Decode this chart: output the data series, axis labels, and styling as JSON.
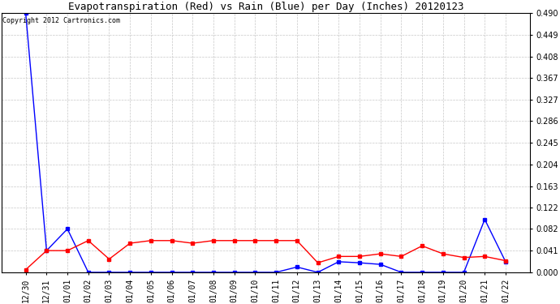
{
  "title": "Evapotranspiration (Red) vs Rain (Blue) per Day (Inches) 20120123",
  "copyright": "Copyright 2012 Cartronics.com",
  "x_labels": [
    "12/30",
    "12/31",
    "01/01",
    "01/02",
    "01/03",
    "01/04",
    "01/05",
    "01/06",
    "01/07",
    "01/08",
    "01/09",
    "01/10",
    "01/11",
    "01/12",
    "01/13",
    "01/14",
    "01/15",
    "01/16",
    "01/17",
    "01/18",
    "01/19",
    "01/20",
    "01/21",
    "01/22"
  ],
  "rain_blue": [
    0.49,
    0.041,
    0.082,
    0.0,
    0.0,
    0.0,
    0.0,
    0.0,
    0.0,
    0.0,
    0.0,
    0.0,
    0.0,
    0.01,
    0.0,
    0.02,
    0.018,
    0.015,
    0.0,
    0.0,
    0.0,
    0.0,
    0.1,
    0.02
  ],
  "et_red": [
    0.005,
    0.041,
    0.041,
    0.06,
    0.025,
    0.055,
    0.06,
    0.06,
    0.055,
    0.06,
    0.06,
    0.06,
    0.06,
    0.06,
    0.018,
    0.03,
    0.03,
    0.035,
    0.03,
    0.05,
    0.035,
    0.028,
    0.03,
    0.022
  ],
  "ylim": [
    0.0,
    0.49
  ],
  "yticks": [
    0.0,
    0.041,
    0.082,
    0.122,
    0.163,
    0.204,
    0.245,
    0.286,
    0.327,
    0.367,
    0.408,
    0.449,
    0.49
  ],
  "bg_color": "#ffffff",
  "grid_color": "#c8c8c8",
  "title_fontsize": 9,
  "copyright_fontsize": 6,
  "tick_fontsize": 7
}
